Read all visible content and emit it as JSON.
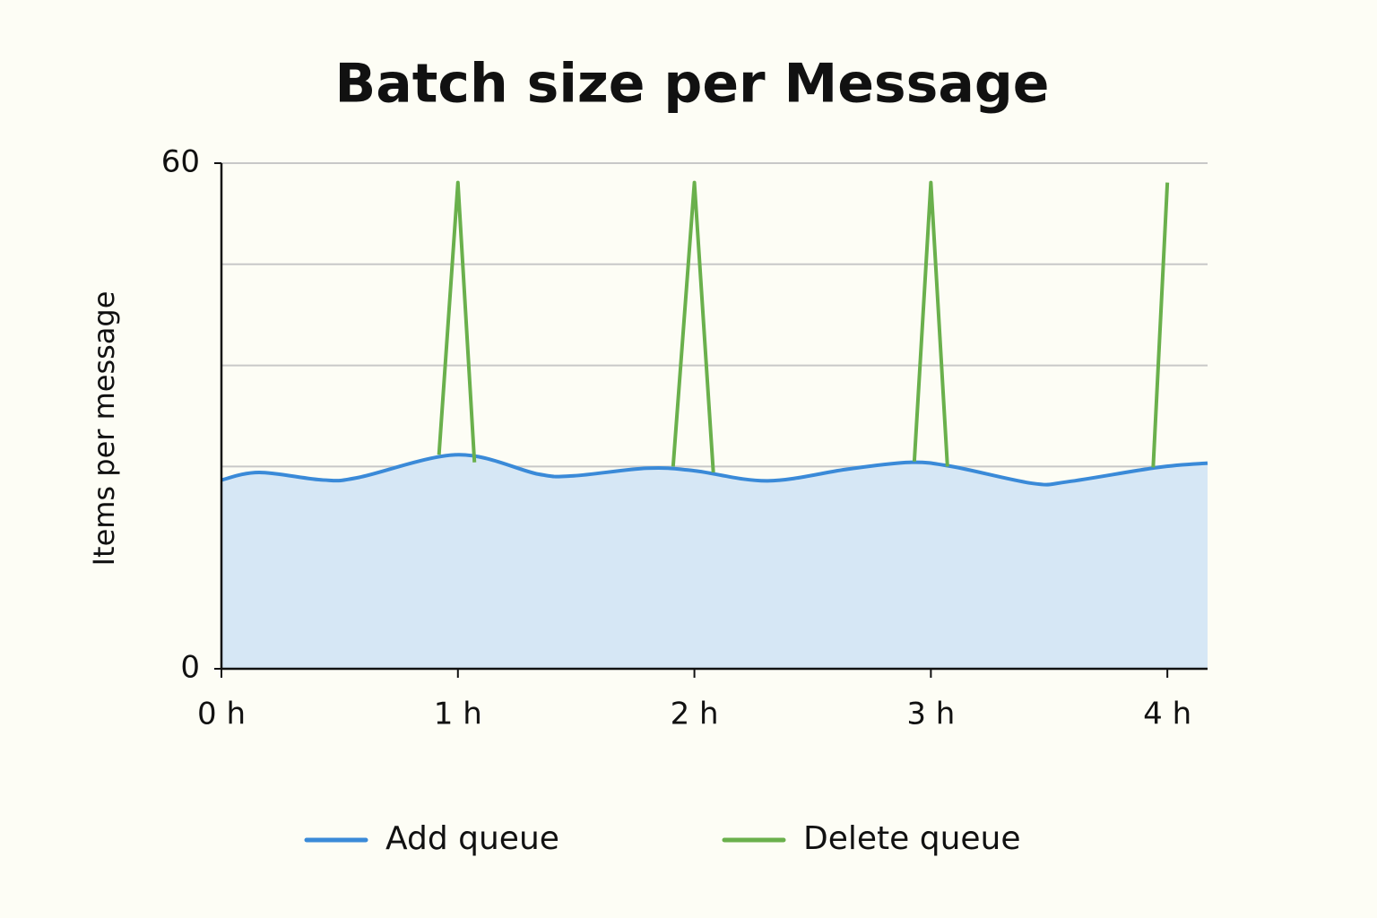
{
  "chart_data": {
    "type": "line",
    "title": "Batch size per Message",
    "y_label": "Items per message",
    "xlim": [
      0,
      4.17
    ],
    "xticks": [
      {
        "value": 0,
        "label": "0 h"
      },
      {
        "value": 1,
        "label": "1 h"
      },
      {
        "value": 2,
        "label": "2 h"
      },
      {
        "value": 3,
        "label": "3 h"
      },
      {
        "value": 4,
        "label": "4 h"
      }
    ],
    "ylim": [
      0,
      60
    ],
    "yticks": [
      0,
      60
    ],
    "ygrid": [
      24,
      36,
      48,
      60
    ],
    "legend": "bottom",
    "series": [
      {
        "name": "Add queue",
        "color": "#3a8ad8",
        "fill": "#d6e7f5",
        "x": [
          0,
          0.16,
          0.43,
          0.58,
          1.0,
          1.34,
          1.49,
          1.8,
          2.0,
          2.31,
          2.65,
          2.91,
          3.09,
          3.43,
          3.58,
          3.96,
          4.17
        ],
        "values": [
          22.4,
          23.3,
          22.4,
          22.7,
          25.4,
          23.1,
          22.9,
          23.8,
          23.5,
          22.3,
          23.7,
          24.5,
          24.0,
          22.0,
          22.2,
          23.9,
          24.4
        ]
      },
      {
        "name": "Delete queue",
        "color": "#6ab04c",
        "x": [
          0.92,
          1.0,
          1.07,
          1.5,
          1.91,
          2.0,
          2.08,
          2.5,
          2.93,
          3.0,
          3.07,
          3.5,
          3.94,
          4.0
        ],
        "values": [
          25.4,
          57.7,
          24.5,
          null,
          24.0,
          57.7,
          23.3,
          null,
          24.6,
          57.7,
          24.0,
          null,
          23.9,
          57.7
        ]
      }
    ]
  }
}
